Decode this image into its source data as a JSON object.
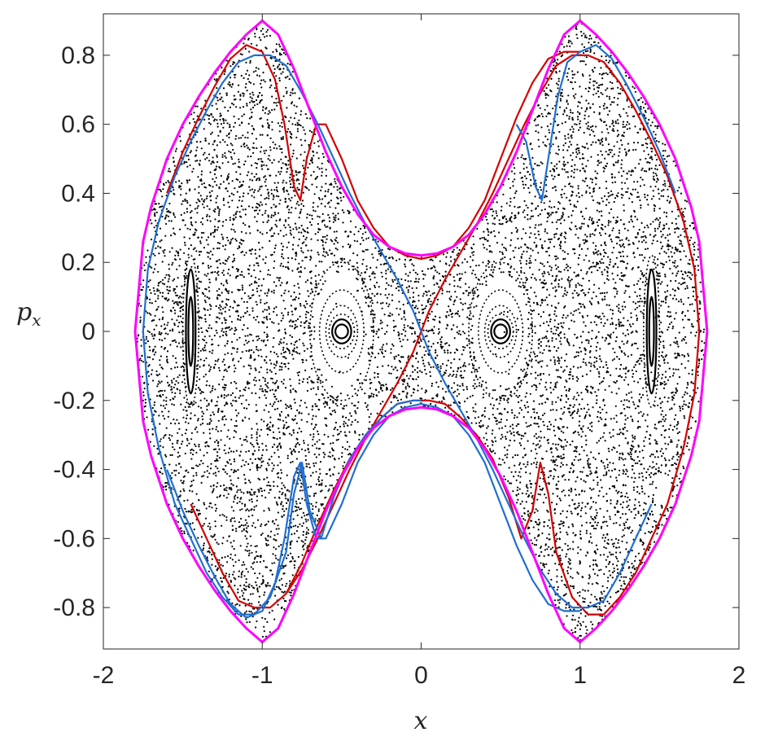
{
  "chart_data": {
    "type": "scatter",
    "title": "",
    "xlabel": "x",
    "ylabel_main": "p",
    "ylabel_sub": "x",
    "xlim": [
      -2,
      2
    ],
    "ylim": [
      -0.92,
      0.92
    ],
    "xticks": [
      -2,
      -1,
      0,
      1,
      2
    ],
    "xtick_labels": [
      "-2",
      "-1",
      "0",
      "1",
      "2"
    ],
    "yticks": [
      -0.8,
      -0.6,
      -0.4,
      -0.2,
      0,
      0.2,
      0.4,
      0.6,
      0.8
    ],
    "ytick_labels": [
      "-0.8",
      "-0.6",
      "-0.4",
      "-0.2",
      "0",
      "0.2",
      "0.4",
      "0.6",
      "0.8"
    ],
    "grid": false,
    "legend": "none",
    "boundary": {
      "color": "#ff00ff",
      "points": [
        [
          -1.8,
          0.0
        ],
        [
          -1.75,
          0.26
        ],
        [
          -1.7,
          0.36
        ],
        [
          -1.6,
          0.5
        ],
        [
          -1.5,
          0.6
        ],
        [
          -1.4,
          0.68
        ],
        [
          -1.3,
          0.75
        ],
        [
          -1.2,
          0.81
        ],
        [
          -1.1,
          0.86
        ],
        [
          -1.0,
          0.9
        ],
        [
          -0.9,
          0.86
        ],
        [
          -0.8,
          0.76
        ],
        [
          -0.7,
          0.64
        ],
        [
          -0.6,
          0.52
        ],
        [
          -0.5,
          0.42
        ],
        [
          -0.4,
          0.34
        ],
        [
          -0.3,
          0.28
        ],
        [
          -0.2,
          0.245
        ],
        [
          -0.1,
          0.226
        ],
        [
          0.0,
          0.22
        ],
        [
          0.1,
          0.226
        ],
        [
          0.2,
          0.245
        ],
        [
          0.3,
          0.28
        ],
        [
          0.4,
          0.34
        ],
        [
          0.5,
          0.42
        ],
        [
          0.6,
          0.52
        ],
        [
          0.7,
          0.64
        ],
        [
          0.8,
          0.76
        ],
        [
          0.9,
          0.86
        ],
        [
          1.0,
          0.9
        ],
        [
          1.1,
          0.86
        ],
        [
          1.2,
          0.81
        ],
        [
          1.3,
          0.75
        ],
        [
          1.4,
          0.68
        ],
        [
          1.5,
          0.6
        ],
        [
          1.6,
          0.5
        ],
        [
          1.7,
          0.36
        ],
        [
          1.75,
          0.26
        ],
        [
          1.8,
          0.0
        ]
      ]
    },
    "series": [
      {
        "color": "#d40000",
        "points": [
          [
            -1.45,
            -0.5
          ],
          [
            -1.35,
            -0.6
          ],
          [
            -1.25,
            -0.7
          ],
          [
            -1.15,
            -0.78
          ],
          [
            -1.05,
            -0.8
          ],
          [
            -0.95,
            -0.8
          ],
          [
            -0.85,
            -0.76
          ],
          [
            -0.75,
            -0.67
          ],
          [
            -0.65,
            -0.56
          ],
          [
            -0.55,
            -0.46
          ],
          [
            -0.45,
            -0.37
          ],
          [
            -0.35,
            -0.3
          ],
          [
            -0.25,
            -0.25
          ],
          [
            -0.15,
            -0.21
          ],
          [
            -0.05,
            -0.2
          ],
          [
            0.0,
            -0.2
          ],
          [
            0.05,
            -0.2
          ],
          [
            0.15,
            -0.21
          ],
          [
            0.25,
            -0.25
          ],
          [
            0.35,
            -0.3
          ],
          [
            0.45,
            -0.37
          ],
          [
            0.55,
            -0.48
          ],
          [
            0.63,
            -0.6
          ],
          [
            0.7,
            -0.52
          ],
          [
            0.75,
            -0.38
          ],
          [
            0.8,
            -0.47
          ],
          [
            0.85,
            -0.64
          ],
          [
            0.95,
            -0.77
          ],
          [
            1.05,
            -0.82
          ],
          [
            1.15,
            -0.82
          ],
          [
            1.25,
            -0.77
          ],
          [
            1.35,
            -0.7
          ],
          [
            1.45,
            -0.6
          ],
          [
            1.55,
            -0.5
          ],
          [
            1.65,
            -0.34
          ],
          [
            1.72,
            -0.18
          ],
          [
            1.75,
            0.0
          ],
          [
            1.72,
            0.18
          ],
          [
            1.65,
            0.32
          ],
          [
            1.55,
            0.45
          ],
          [
            1.45,
            0.55
          ],
          [
            1.35,
            0.64
          ],
          [
            1.25,
            0.72
          ],
          [
            1.15,
            0.78
          ],
          [
            1.05,
            0.8
          ],
          [
            0.95,
            0.8
          ],
          [
            0.85,
            0.77
          ],
          [
            0.75,
            0.69
          ],
          [
            0.65,
            0.6
          ],
          [
            0.55,
            0.5
          ],
          [
            0.45,
            0.4
          ],
          [
            0.35,
            0.31
          ],
          [
            0.25,
            0.23
          ],
          [
            0.15,
            0.15
          ],
          [
            0.05,
            0.06
          ],
          [
            0.0,
            0.0
          ],
          [
            -0.05,
            -0.06
          ],
          [
            -0.15,
            -0.15
          ],
          [
            -0.25,
            -0.23
          ],
          [
            -0.35,
            -0.31
          ],
          [
            -0.45,
            -0.4
          ],
          [
            -0.55,
            -0.5
          ],
          [
            -0.65,
            -0.6
          ],
          [
            -0.75,
            -0.69
          ],
          [
            -0.85,
            -0.76
          ],
          [
            -0.95,
            -0.8
          ],
          [
            -1.0,
            -0.8
          ]
        ]
      },
      {
        "color": "#d40000",
        "points": [
          [
            -1.6,
            0.4
          ],
          [
            -1.5,
            0.52
          ],
          [
            -1.4,
            0.62
          ],
          [
            -1.3,
            0.71
          ],
          [
            -1.2,
            0.79
          ],
          [
            -1.1,
            0.83
          ],
          [
            -1.0,
            0.81
          ],
          [
            -0.92,
            0.73
          ],
          [
            -0.86,
            0.6
          ],
          [
            -0.8,
            0.42
          ],
          [
            -0.76,
            0.38
          ],
          [
            -0.72,
            0.5
          ],
          [
            -0.66,
            0.6
          ],
          [
            -0.6,
            0.6
          ],
          [
            -0.5,
            0.5
          ],
          [
            -0.4,
            0.38
          ],
          [
            -0.3,
            0.3
          ],
          [
            -0.2,
            0.245
          ],
          [
            -0.1,
            0.22
          ],
          [
            0.0,
            0.21
          ],
          [
            0.1,
            0.22
          ],
          [
            0.2,
            0.245
          ],
          [
            0.3,
            0.3
          ],
          [
            0.4,
            0.38
          ],
          [
            0.5,
            0.5
          ],
          [
            0.6,
            0.62
          ],
          [
            0.7,
            0.72
          ],
          [
            0.8,
            0.79
          ],
          [
            0.9,
            0.81
          ],
          [
            1.0,
            0.81
          ]
        ]
      },
      {
        "color": "#1f6fd0",
        "points": [
          [
            -1.6,
            -0.4
          ],
          [
            -1.5,
            -0.52
          ],
          [
            -1.4,
            -0.62
          ],
          [
            -1.3,
            -0.71
          ],
          [
            -1.2,
            -0.79
          ],
          [
            -1.1,
            -0.83
          ],
          [
            -1.0,
            -0.81
          ],
          [
            -0.92,
            -0.73
          ],
          [
            -0.86,
            -0.6
          ],
          [
            -0.8,
            -0.42
          ],
          [
            -0.76,
            -0.38
          ],
          [
            -0.72,
            -0.5
          ],
          [
            -0.66,
            -0.6
          ],
          [
            -0.6,
            -0.6
          ],
          [
            -0.5,
            -0.5
          ],
          [
            -0.4,
            -0.38
          ],
          [
            -0.3,
            -0.3
          ],
          [
            -0.2,
            -0.245
          ],
          [
            -0.1,
            -0.22
          ],
          [
            0.0,
            -0.21
          ],
          [
            0.1,
            -0.22
          ],
          [
            0.2,
            -0.245
          ],
          [
            0.3,
            -0.3
          ],
          [
            0.4,
            -0.38
          ],
          [
            0.5,
            -0.5
          ],
          [
            0.6,
            -0.62
          ],
          [
            0.7,
            -0.72
          ],
          [
            0.8,
            -0.79
          ],
          [
            0.9,
            -0.81
          ],
          [
            1.0,
            -0.81
          ]
        ]
      },
      {
        "color": "#1f6fd0",
        "points": [
          [
            1.45,
            -0.5
          ],
          [
            1.35,
            -0.6
          ],
          [
            1.25,
            -0.7
          ],
          [
            1.15,
            -0.78
          ],
          [
            1.05,
            -0.8
          ],
          [
            0.95,
            -0.8
          ],
          [
            0.85,
            -0.76
          ],
          [
            0.75,
            -0.69
          ],
          [
            0.65,
            -0.6
          ],
          [
            0.55,
            -0.5
          ],
          [
            0.45,
            -0.4
          ],
          [
            0.35,
            -0.31
          ],
          [
            0.25,
            -0.23
          ],
          [
            0.15,
            -0.15
          ],
          [
            0.05,
            -0.06
          ],
          [
            0.0,
            0.0
          ],
          [
            -0.05,
            0.06
          ],
          [
            -0.15,
            0.15
          ],
          [
            -0.25,
            0.23
          ],
          [
            -0.35,
            0.31
          ],
          [
            -0.45,
            0.4
          ],
          [
            -0.55,
            0.5
          ],
          [
            -0.65,
            0.6
          ],
          [
            -0.75,
            0.69
          ],
          [
            -0.85,
            0.77
          ],
          [
            -0.95,
            0.8
          ],
          [
            -1.05,
            0.8
          ],
          [
            -1.15,
            0.78
          ],
          [
            -1.25,
            0.72
          ],
          [
            -1.35,
            0.64
          ],
          [
            -1.45,
            0.55
          ],
          [
            -1.55,
            0.45
          ],
          [
            -1.65,
            0.32
          ],
          [
            -1.72,
            0.18
          ],
          [
            -1.75,
            0.0
          ],
          [
            -1.72,
            -0.18
          ],
          [
            -1.65,
            -0.34
          ],
          [
            -1.55,
            -0.5
          ],
          [
            -1.45,
            -0.6
          ],
          [
            -1.35,
            -0.7
          ],
          [
            -1.25,
            -0.77
          ],
          [
            -1.15,
            -0.82
          ],
          [
            -1.05,
            -0.82
          ],
          [
            -0.95,
            -0.77
          ],
          [
            -0.85,
            -0.64
          ],
          [
            -0.8,
            -0.47
          ],
          [
            -0.75,
            -0.38
          ],
          [
            -0.7,
            -0.52
          ],
          [
            -0.63,
            -0.6
          ],
          [
            -0.55,
            -0.48
          ],
          [
            -0.45,
            -0.37
          ],
          [
            -0.35,
            -0.3
          ],
          [
            -0.25,
            -0.25
          ],
          [
            -0.15,
            -0.21
          ],
          [
            -0.05,
            -0.2
          ],
          [
            0.0,
            -0.2
          ]
        ]
      },
      {
        "color": "#1f6fd0",
        "points": [
          [
            0.6,
            0.6
          ],
          [
            0.66,
            0.55
          ],
          [
            0.72,
            0.42
          ],
          [
            0.76,
            0.38
          ],
          [
            0.8,
            0.5
          ],
          [
            0.86,
            0.68
          ],
          [
            0.92,
            0.78
          ],
          [
            1.0,
            0.81
          ],
          [
            1.1,
            0.83
          ],
          [
            1.2,
            0.79
          ],
          [
            1.3,
            0.71
          ],
          [
            1.4,
            0.62
          ],
          [
            1.5,
            0.52
          ],
          [
            1.6,
            0.4
          ]
        ]
      }
    ],
    "islands": [
      {
        "center": [
          -0.5,
          0.0
        ],
        "rx": [
          0.04,
          0.06,
          0.08,
          0.1,
          0.14,
          0.2
        ],
        "ry": [
          0.02,
          0.035,
          0.05,
          0.075,
          0.12,
          0.2
        ]
      },
      {
        "center": [
          0.5,
          0.0
        ],
        "rx": [
          0.04,
          0.06,
          0.08,
          0.1,
          0.14,
          0.2
        ],
        "ry": [
          0.02,
          0.035,
          0.05,
          0.075,
          0.12,
          0.2
        ]
      },
      {
        "center": [
          -1.45,
          0.0
        ],
        "rx": [
          0.015,
          0.03,
          0.05
        ],
        "ry": [
          0.1,
          0.18,
          0.22
        ]
      },
      {
        "center": [
          1.45,
          0.0
        ],
        "rx": [
          0.015,
          0.03,
          0.05
        ],
        "ry": [
          0.1,
          0.18,
          0.22
        ]
      }
    ],
    "scatter_points": 9000,
    "colors": {
      "boundary": "#ff00ff",
      "red": "#d40000",
      "blue": "#1f6fd0",
      "chaos": "#000000"
    }
  }
}
